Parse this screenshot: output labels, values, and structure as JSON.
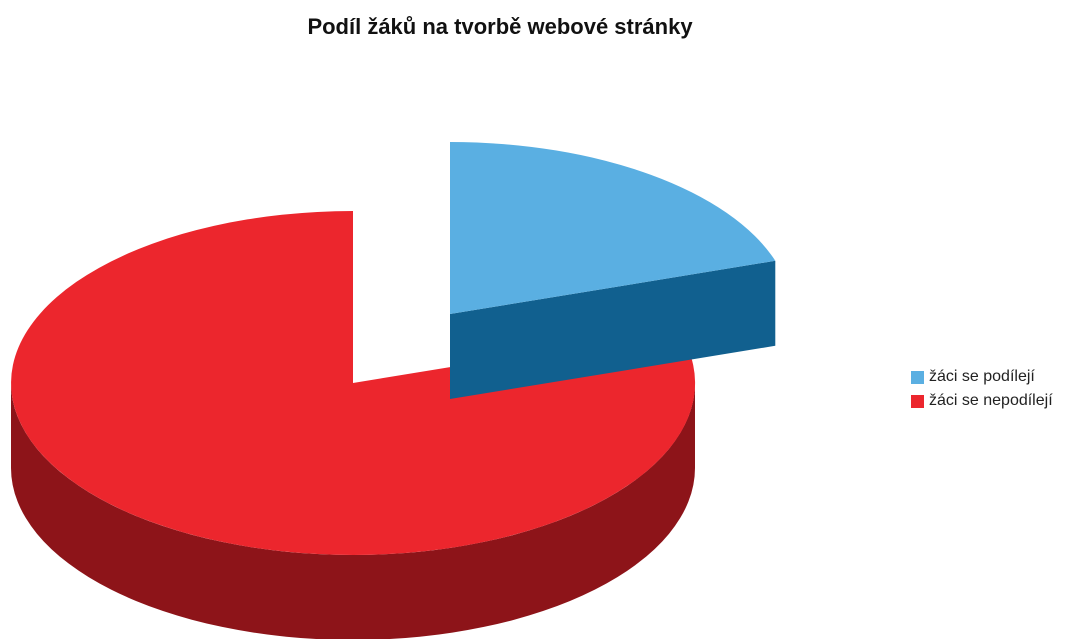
{
  "chart_data": {
    "type": "pie",
    "title": "Podíl žáků na tvorbě webové stránky",
    "three_d": true,
    "exploded": true,
    "legend_position": "right",
    "slices": [
      {
        "label": "žáci se podílejí",
        "value": 20,
        "color": "#5aafe2",
        "side_color": "#11608f"
      },
      {
        "label": "žáci se nepodílejí",
        "value": 80,
        "color": "#ec262d",
        "side_color": "#8d1419"
      }
    ]
  }
}
